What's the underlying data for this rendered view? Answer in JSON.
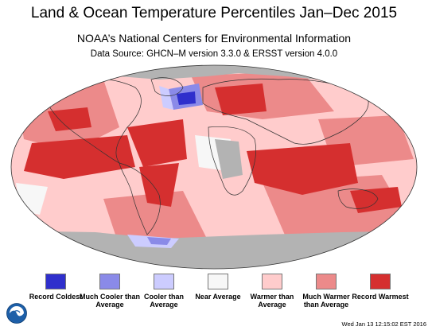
{
  "title": "Land & Ocean Temperature Percentiles Jan–Dec 2015",
  "subtitle": "NOAA’s National Centers for Environmental Information",
  "source": "Data Source: GHCN–M version 3.3.0 & ERSST version 4.0.0",
  "legend": [
    {
      "label": "Record Coldest",
      "color": "#2f2fcc"
    },
    {
      "label": "Much Cooler than Average",
      "color": "#8a8ae8"
    },
    {
      "label": "Cooler than Average",
      "color": "#ccccff"
    },
    {
      "label": "Near Average",
      "color": "#f7f7f7"
    },
    {
      "label": "Warmer than Average",
      "color": "#ffcccc"
    },
    {
      "label": "Much Warmer than Average",
      "color": "#ec8a8a"
    },
    {
      "label": "Record Warmest",
      "color": "#d52f2f"
    }
  ],
  "no_data_color": "#b3b3b3",
  "logo": "NOAA",
  "timestamp": "Wed Jan 13 12:15:02 EST 2016"
}
